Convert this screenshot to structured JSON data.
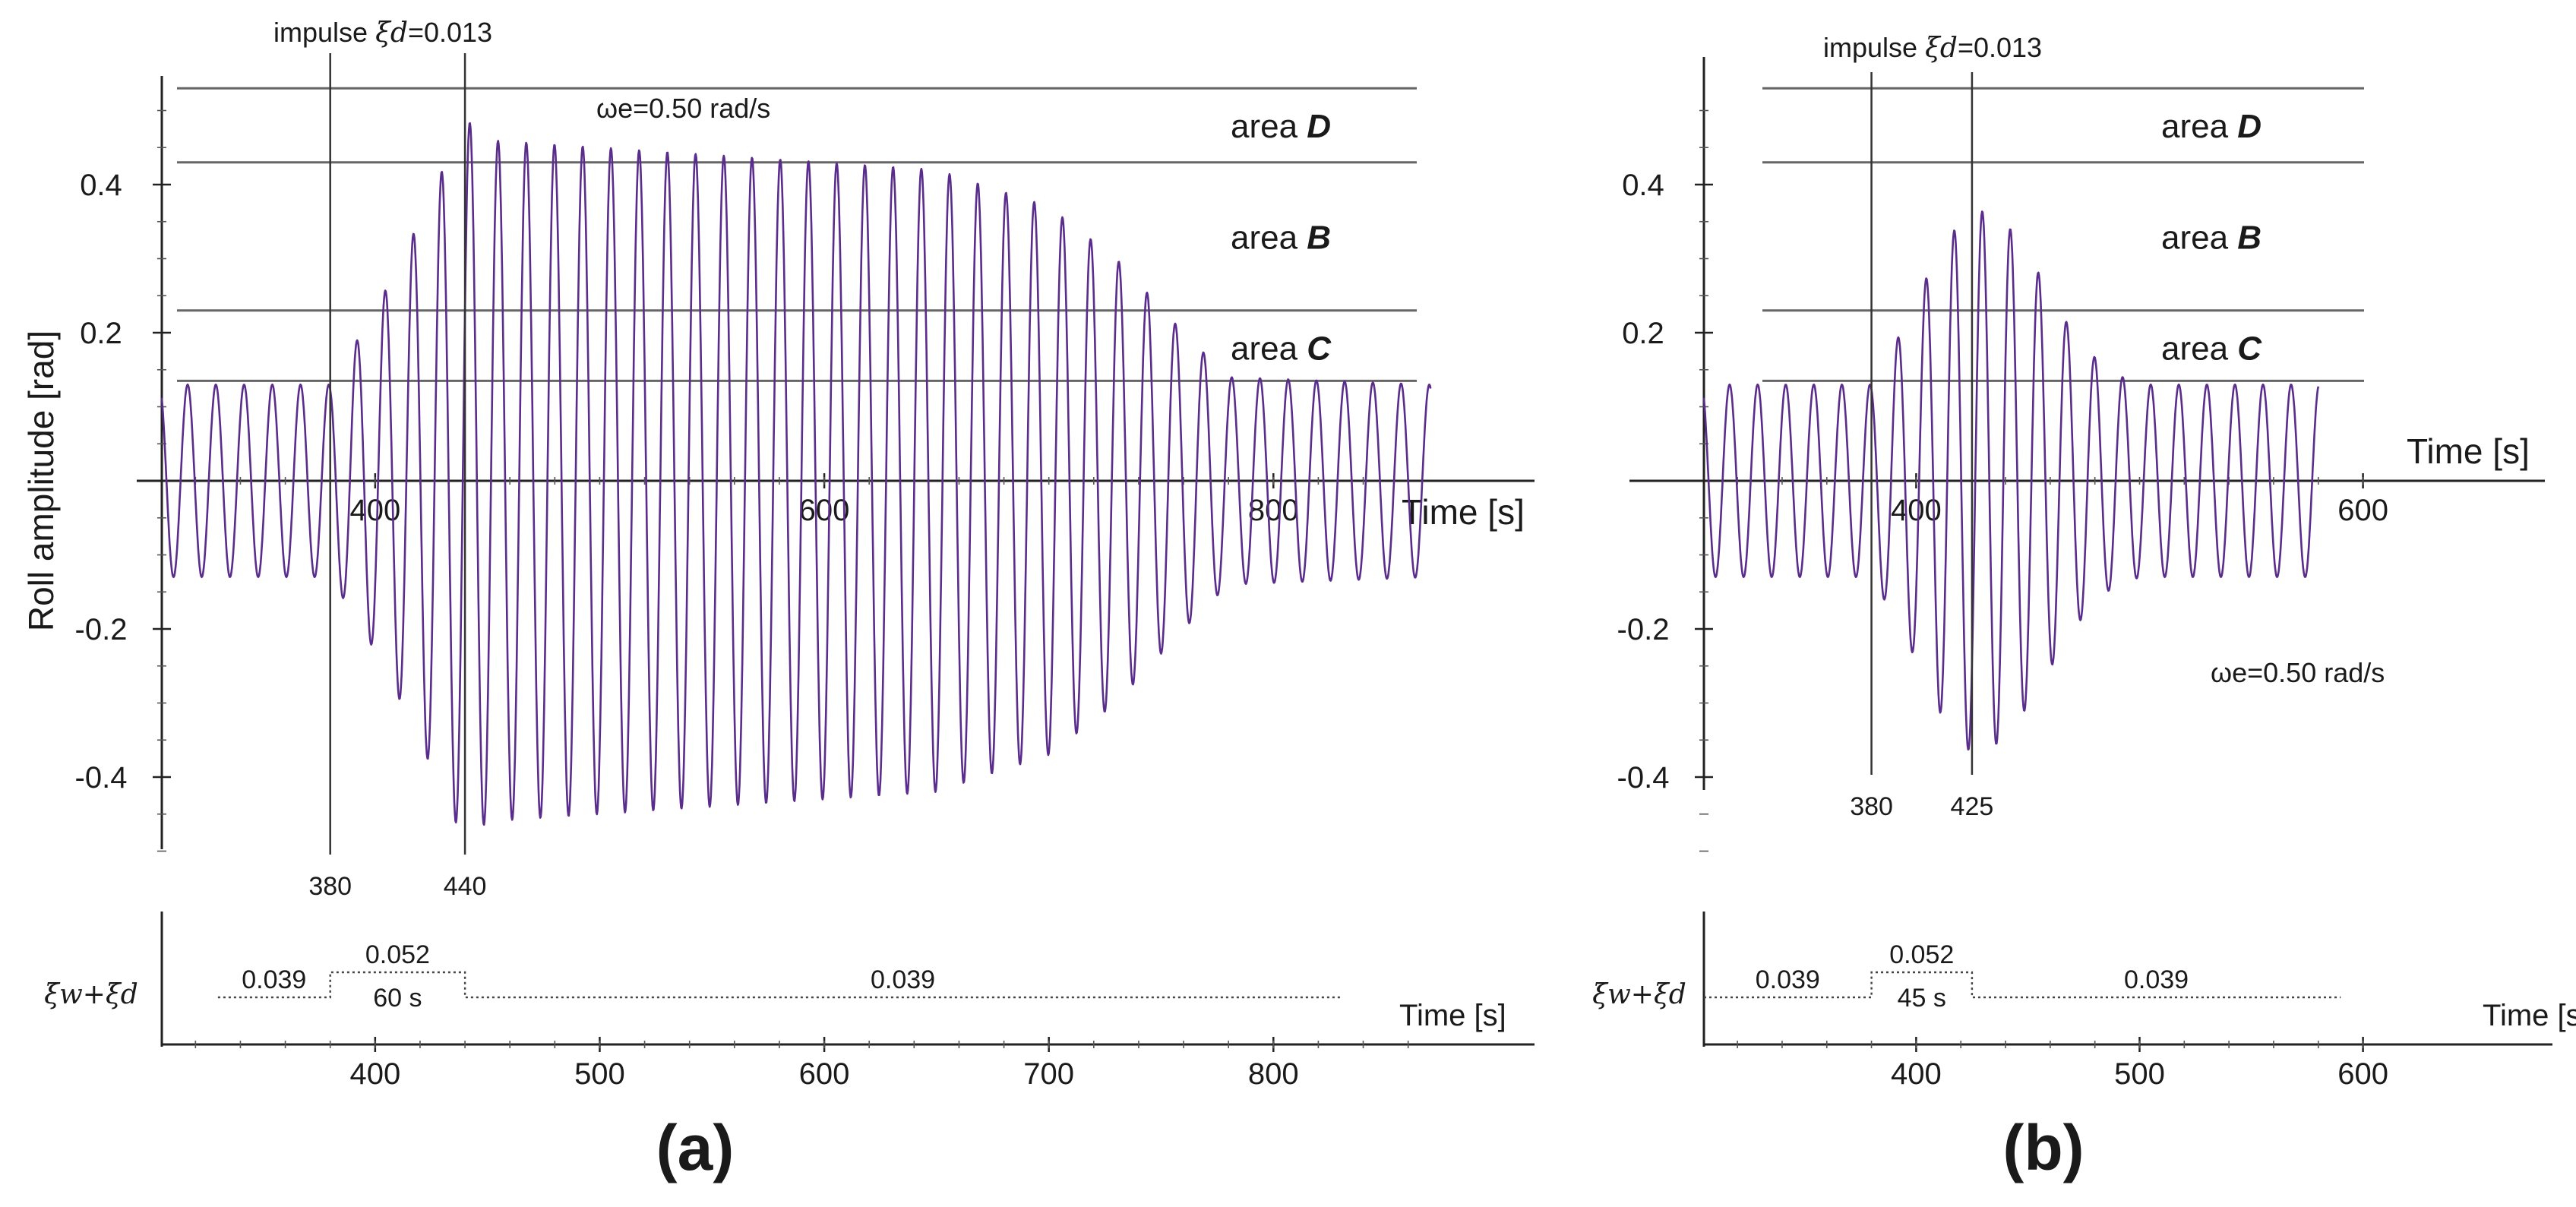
{
  "chart_data": [
    {
      "id": "a",
      "type": "line",
      "panel_label": "(a)",
      "ylabel": "Roll amplitude [rad]",
      "xlabel": "Time [s]",
      "xlim": [
        305,
        875
      ],
      "ylim": [
        -0.52,
        0.53
      ],
      "x_ticks": [
        400,
        600,
        800
      ],
      "y_ticks": [
        0.4,
        0.2,
        -0.2,
        -0.4
      ],
      "y_tick_labels": [
        "0.4",
        "0.2",
        "-0.2",
        "-0.4"
      ],
      "x_tick_labels": [
        "400",
        "600",
        "800"
      ],
      "omega_label": "ωe=0.50 rad/s",
      "impulse": {
        "prefix": "impulse ",
        "symbol": "ξd",
        "value": "=0.013"
      },
      "threshold_lines": [
        0.53,
        0.43,
        0.23,
        0.135
      ],
      "areas": [
        {
          "name": "area ",
          "letter": "D",
          "y": 0.48
        },
        {
          "name": "area ",
          "letter": "B",
          "y": 0.33
        },
        {
          "name": "area ",
          "letter": "C",
          "y": 0.18
        }
      ],
      "markers": [
        {
          "x": 380,
          "label": "380"
        },
        {
          "x": 440,
          "label": "440"
        }
      ],
      "series": [
        {
          "name": "roll response",
          "omega": 0.5,
          "phase": 0.4,
          "amplitude_profile": [
            [
              305,
              0.13
            ],
            [
              380,
              0.13
            ],
            [
              400,
              0.23
            ],
            [
              415,
              0.32
            ],
            [
              430,
              0.42
            ],
            [
              440,
              0.49
            ],
            [
              450,
              0.46
            ],
            [
              550,
              0.44
            ],
            [
              650,
              0.42
            ],
            [
              700,
              0.37
            ],
            [
              730,
              0.3
            ],
            [
              760,
              0.2
            ],
            [
              780,
              0.14
            ],
            [
              870,
              0.13
            ]
          ]
        }
      ],
      "damping": {
        "ylabel": "ξw+ξd",
        "xlabel": "Time [s]",
        "xlim": [
          305,
          875
        ],
        "x_ticks": [
          400,
          500,
          600,
          700,
          800
        ],
        "x_tick_labels": [
          "400",
          "500",
          "600",
          "700",
          "800"
        ],
        "steps": [
          [
            330,
            0.039
          ],
          [
            380,
            0.039
          ],
          [
            380,
            0.052
          ],
          [
            440,
            0.052
          ],
          [
            440,
            0.039
          ],
          [
            830,
            0.039
          ]
        ],
        "labels": {
          "before": "0.039",
          "during": "0.052",
          "duration": "60 s",
          "after": "0.039"
        }
      }
    },
    {
      "id": "b",
      "type": "line",
      "panel_label": "(b)",
      "xlabel": "Time [s]",
      "xlim": [
        305,
        610
      ],
      "ylim": [
        -0.52,
        0.53
      ],
      "x_ticks": [
        400,
        600
      ],
      "y_ticks": [
        0.4,
        0.2,
        -0.2,
        -0.4
      ],
      "y_tick_labels": [
        "0.4",
        "0.2",
        "-0.2",
        "-0.4"
      ],
      "x_tick_labels": [
        "400",
        "600"
      ],
      "omega_label": "ωe=0.50 rad/s",
      "impulse": {
        "prefix": "impulse ",
        "symbol": "ξd",
        "value": "=0.013"
      },
      "threshold_lines": [
        0.53,
        0.43,
        0.23,
        0.135
      ],
      "areas": [
        {
          "name": "area ",
          "letter": "D",
          "y": 0.48
        },
        {
          "name": "area ",
          "letter": "B",
          "y": 0.33
        },
        {
          "name": "area ",
          "letter": "C",
          "y": 0.18
        }
      ],
      "markers": [
        {
          "x": 380,
          "label": "380"
        },
        {
          "x": 425,
          "label": "425"
        }
      ],
      "series": [
        {
          "name": "roll response",
          "omega": 0.5,
          "phase": 0.4,
          "amplitude_profile": [
            [
              305,
              0.13
            ],
            [
              380,
              0.13
            ],
            [
              395,
              0.21
            ],
            [
              410,
              0.31
            ],
            [
              425,
              0.37
            ],
            [
              440,
              0.35
            ],
            [
              455,
              0.28
            ],
            [
              470,
              0.2
            ],
            [
              485,
              0.15
            ],
            [
              500,
              0.13
            ],
            [
              580,
              0.13
            ]
          ]
        }
      ],
      "damping": {
        "ylabel": "ξw+ξd",
        "xlabel": "Time [s]",
        "xlim": [
          305,
          610
        ],
        "x_ticks": [
          400,
          500,
          600
        ],
        "x_tick_labels": [
          "400",
          "500",
          "600"
        ],
        "steps": [
          [
            305,
            0.039
          ],
          [
            380,
            0.039
          ],
          [
            380,
            0.052
          ],
          [
            425,
            0.052
          ],
          [
            425,
            0.039
          ],
          [
            590,
            0.039
          ]
        ],
        "labels": {
          "before": "0.039",
          "during": "0.052",
          "duration": "45 s",
          "after": "0.039"
        }
      }
    }
  ]
}
